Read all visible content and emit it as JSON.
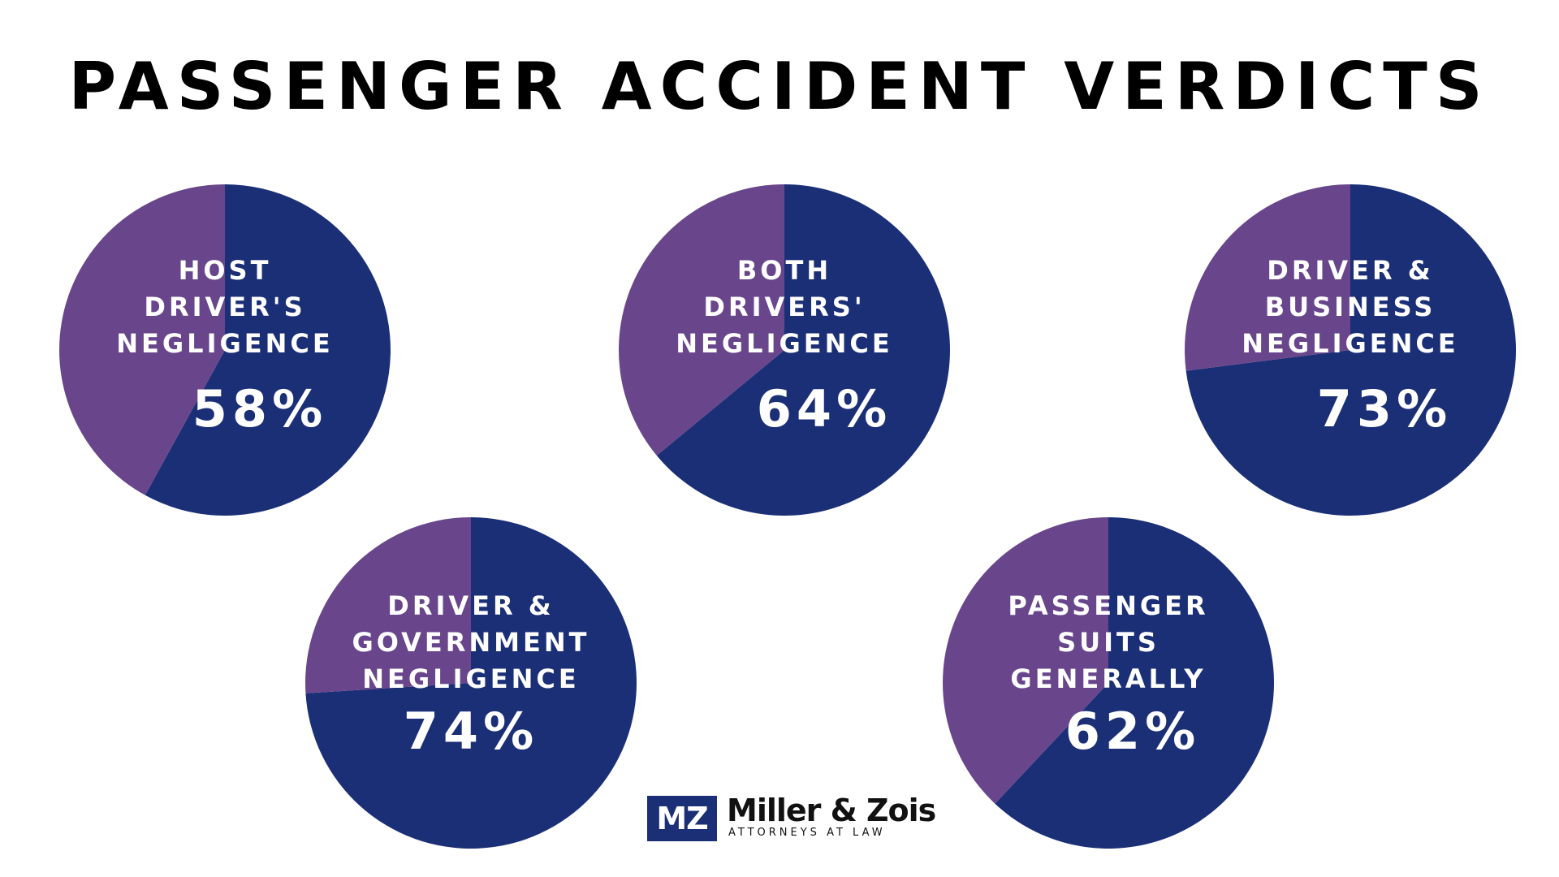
{
  "title": "PASSENGER ACCIDENT VERDICTS",
  "colors": {
    "primary": "#1b2f77",
    "secondary": "#69468b",
    "label": "#ffffff",
    "title": "#000000"
  },
  "logo": {
    "mark": "MZ",
    "name": "Miller & Zois",
    "tagline": "ATTORNEYS AT LAW"
  },
  "chart_data": [
    {
      "type": "pie",
      "label_lines": [
        "HOST",
        "DRIVER'S",
        "NEGLIGENCE"
      ],
      "percent_label": "58%",
      "values": [
        58,
        42
      ]
    },
    {
      "type": "pie",
      "label_lines": [
        "BOTH",
        "DRIVERS'",
        "NEGLIGENCE"
      ],
      "percent_label": "64%",
      "values": [
        64,
        36
      ]
    },
    {
      "type": "pie",
      "label_lines": [
        "DRIVER &",
        "BUSINESS",
        "NEGLIGENCE"
      ],
      "percent_label": "73%",
      "values": [
        73,
        27
      ]
    },
    {
      "type": "pie",
      "label_lines": [
        "DRIVER &",
        "GOVERNMENT",
        "NEGLIGENCE"
      ],
      "percent_label": "74%",
      "values": [
        74,
        26
      ]
    },
    {
      "type": "pie",
      "label_lines": [
        "PASSENGER",
        "SUITS",
        "GENERALLY"
      ],
      "percent_label": "62%",
      "values": [
        62,
        38
      ]
    }
  ]
}
